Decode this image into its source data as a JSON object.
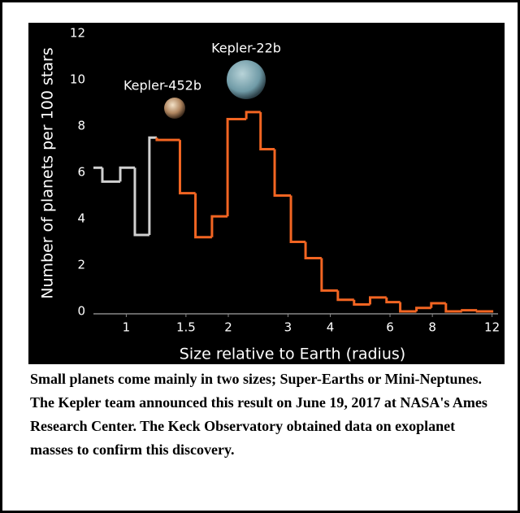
{
  "chart_data": {
    "type": "step-histogram",
    "ylabel": "Number of planets per 100 stars",
    "xlabel": "Size relative to Earth (radius)",
    "annotations": [
      "Kepler-22b",
      "Kepler-452b"
    ],
    "xscale": "log",
    "xlim": [
      0.8,
      12.5
    ],
    "ylim": [
      0,
      12
    ],
    "xticks": [
      1,
      1.5,
      2,
      3,
      4,
      6,
      8,
      12
    ],
    "yticks": [
      0,
      2,
      4,
      6,
      8,
      10,
      12
    ],
    "series": [
      {
        "color": "#d0d0d0",
        "bins": [
          0.8,
          0.85,
          0.96,
          1.06,
          1.17,
          1.23
        ],
        "values": [
          6.2,
          5.6,
          6.2,
          3.3,
          7.5
        ]
      },
      {
        "color": "#f26522",
        "bins": [
          1.23,
          1.44,
          1.6,
          1.79,
          1.99,
          2.26,
          2.49,
          2.74,
          3.06,
          3.38,
          3.77,
          4.21,
          4.7,
          5.24,
          5.86,
          6.43,
          7.18,
          7.94,
          8.77,
          9.79,
          10.84,
          12.1
        ],
        "values": [
          7.4,
          5.1,
          3.2,
          4.1,
          8.3,
          8.6,
          7.0,
          5.0,
          3.0,
          2.3,
          0.9,
          0.5,
          0.3,
          0.6,
          0.4,
          0,
          0.15,
          0.35,
          0,
          0.05,
          0
        ]
      }
    ]
  },
  "caption": "Small planets come mainly in two sizes; Super-Earths or Mini-Neptunes. The Kepler team announced this result on June 19, 2017 at NASA's Ames Research Center. The Keck Observatory obtained data on exoplanet masses to confirm this discovery."
}
